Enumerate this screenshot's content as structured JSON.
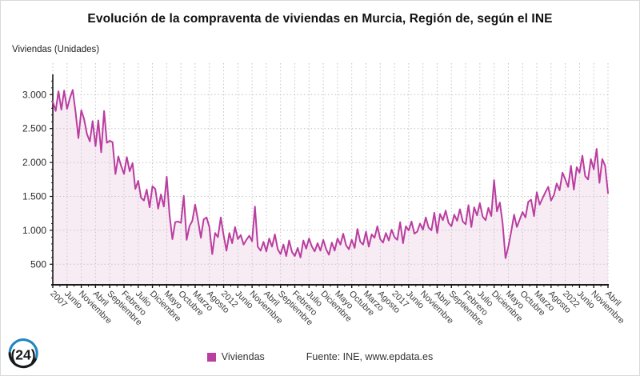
{
  "title": "Evolución de la compraventa de viviendas en Murcia, Región de, según el INE",
  "y_axis_title": "Viviendas (Unidades)",
  "legend": {
    "series_label": "Viviendas",
    "source": "Fuente: INE, www.epdata.es"
  },
  "logo": {
    "text": "(24)",
    "blue": "#1f86c4",
    "dark": "#17191c"
  },
  "colors": {
    "line": "#ba3da0",
    "fill": "#f8ecf4",
    "grid": "#c3c3c3",
    "axis": "#1a1a1a",
    "tick_text": "#3d3d3d"
  },
  "chart_data": {
    "type": "line",
    "series_name": "Viviendas",
    "x_start": "2007-01",
    "x_end": "2023-04",
    "frequency": "monthly",
    "x_tick_labels": [
      "2007",
      "Junio",
      "Noviembre",
      "Abril",
      "Septiembre",
      "Febrero",
      "Julio",
      "Diciembre",
      "Mayo",
      "Octubre",
      "Marzo",
      "Agosto",
      "2012",
      "Junio",
      "Noviembre",
      "Abril",
      "Septiembre",
      "Febrero",
      "Julio",
      "Diciembre",
      "Mayo",
      "Octubre",
      "Marzo",
      "Agosto",
      "2017",
      "Junio",
      "Noviembre",
      "Abril",
      "Septiembre",
      "Febrero",
      "Julio",
      "Diciembre",
      "Mayo",
      "Octubre",
      "Marzo",
      "Agosto",
      "2022",
      "Junio",
      "Noviembre",
      "Abril"
    ],
    "x_tick_step_months": 5,
    "y_ticks": [
      500,
      1000,
      1500,
      2000,
      2500,
      3000
    ],
    "y_tick_labels": [
      "500",
      "1.000",
      "1.500",
      "2.000",
      "2.500",
      "3.000"
    ],
    "ylim": [
      200,
      3250
    ],
    "grid": true,
    "legend_position": "bottom",
    "values": [
      2900,
      2760,
      3050,
      2780,
      3060,
      2790,
      2950,
      3070,
      2740,
      2360,
      2770,
      2640,
      2420,
      2310,
      2610,
      2240,
      2620,
      2150,
      2760,
      2290,
      2320,
      2300,
      1830,
      2090,
      1950,
      1830,
      2080,
      1870,
      1990,
      1610,
      1730,
      1480,
      1440,
      1600,
      1340,
      1650,
      1610,
      1320,
      1530,
      1350,
      1790,
      1230,
      870,
      1120,
      1130,
      1110,
      1510,
      860,
      1060,
      1140,
      1380,
      1150,
      890,
      1160,
      1190,
      1050,
      650,
      960,
      900,
      1190,
      930,
      700,
      960,
      810,
      1050,
      870,
      930,
      790,
      860,
      920,
      840,
      1350,
      760,
      700,
      830,
      690,
      880,
      760,
      940,
      720,
      650,
      790,
      620,
      850,
      680,
      620,
      740,
      600,
      850,
      730,
      880,
      760,
      690,
      810,
      700,
      860,
      720,
      640,
      820,
      700,
      880,
      790,
      950,
      780,
      720,
      860,
      740,
      1020,
      830,
      790,
      980,
      760,
      940,
      890,
      1060,
      870,
      820,
      960,
      850,
      1010,
      900,
      860,
      1120,
      810,
      1060,
      1000,
      1130,
      950,
      980,
      1100,
      1010,
      1190,
      1040,
      1000,
      1260,
      960,
      1240,
      1150,
      1290,
      1110,
      1060,
      1230,
      1140,
      1310,
      1130,
      1090,
      1370,
      1050,
      1340,
      1220,
      1400,
      1200,
      1150,
      1330,
      1210,
      1740,
      1280,
      1410,
      1100,
      590,
      760,
      980,
      1230,
      1050,
      1160,
      1270,
      1190,
      1420,
      1450,
      1210,
      1560,
      1380,
      1470,
      1560,
      1640,
      1440,
      1520,
      1690,
      1590,
      1850,
      1750,
      1640,
      1950,
      1600,
      1930,
      1850,
      2100,
      1800,
      1750,
      2050,
      1900,
      2200,
      1700,
      2050,
      1950,
      1550
    ]
  }
}
